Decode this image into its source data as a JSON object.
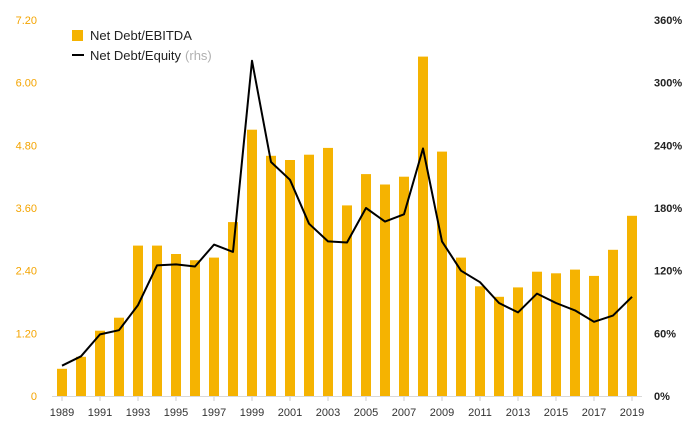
{
  "chart_data": {
    "type": "bar",
    "x": [
      1989,
      1990,
      1991,
      1992,
      1993,
      1994,
      1995,
      1996,
      1997,
      1998,
      1999,
      2000,
      2001,
      2002,
      2003,
      2004,
      2005,
      2006,
      2007,
      2008,
      2009,
      2010,
      2011,
      2012,
      2013,
      2014,
      2015,
      2016,
      2017,
      2018,
      2019
    ],
    "x_tick_labels": [
      "1989",
      "1991",
      "1993",
      "1995",
      "1997",
      "1999",
      "2001",
      "2003",
      "2005",
      "2007",
      "2009",
      "2011",
      "2013",
      "2015",
      "2017",
      "2019"
    ],
    "series": [
      {
        "name": "Net Debt/EBITDA",
        "type": "bar",
        "axis": "left",
        "color": "#f5b301",
        "values": [
          0.52,
          0.75,
          1.25,
          1.5,
          2.88,
          2.88,
          2.72,
          2.6,
          2.65,
          3.33,
          5.1,
          4.6,
          4.52,
          4.62,
          4.75,
          3.65,
          4.25,
          4.05,
          4.2,
          6.5,
          4.68,
          2.65,
          2.1,
          1.9,
          2.08,
          2.38,
          2.35,
          2.42,
          2.3,
          2.8,
          3.45
        ]
      },
      {
        "name": "Net Debt/Equity",
        "name_suffix": "(rhs)",
        "type": "line",
        "axis": "right",
        "color": "#000000",
        "values": [
          29,
          38,
          59,
          63,
          87,
          125,
          126,
          124,
          145,
          138,
          321,
          224,
          207,
          165,
          148,
          147,
          180,
          167,
          174,
          237,
          148,
          120,
          109,
          89,
          80,
          98,
          89,
          82,
          71,
          77,
          95
        ]
      }
    ],
    "y_left": {
      "ticks": [
        "0",
        "1.20",
        "2.40",
        "3.60",
        "4.80",
        "6.00",
        "7.20"
      ],
      "ylim": [
        0,
        7.2
      ]
    },
    "y_right": {
      "ticks": [
        "0%",
        "60%",
        "120%",
        "180%",
        "240%",
        "300%",
        "360%"
      ],
      "ylim": [
        0,
        360
      ]
    },
    "title": "",
    "xlabel": "",
    "ylabel": "",
    "grid": false,
    "legend_position": "top-left"
  }
}
